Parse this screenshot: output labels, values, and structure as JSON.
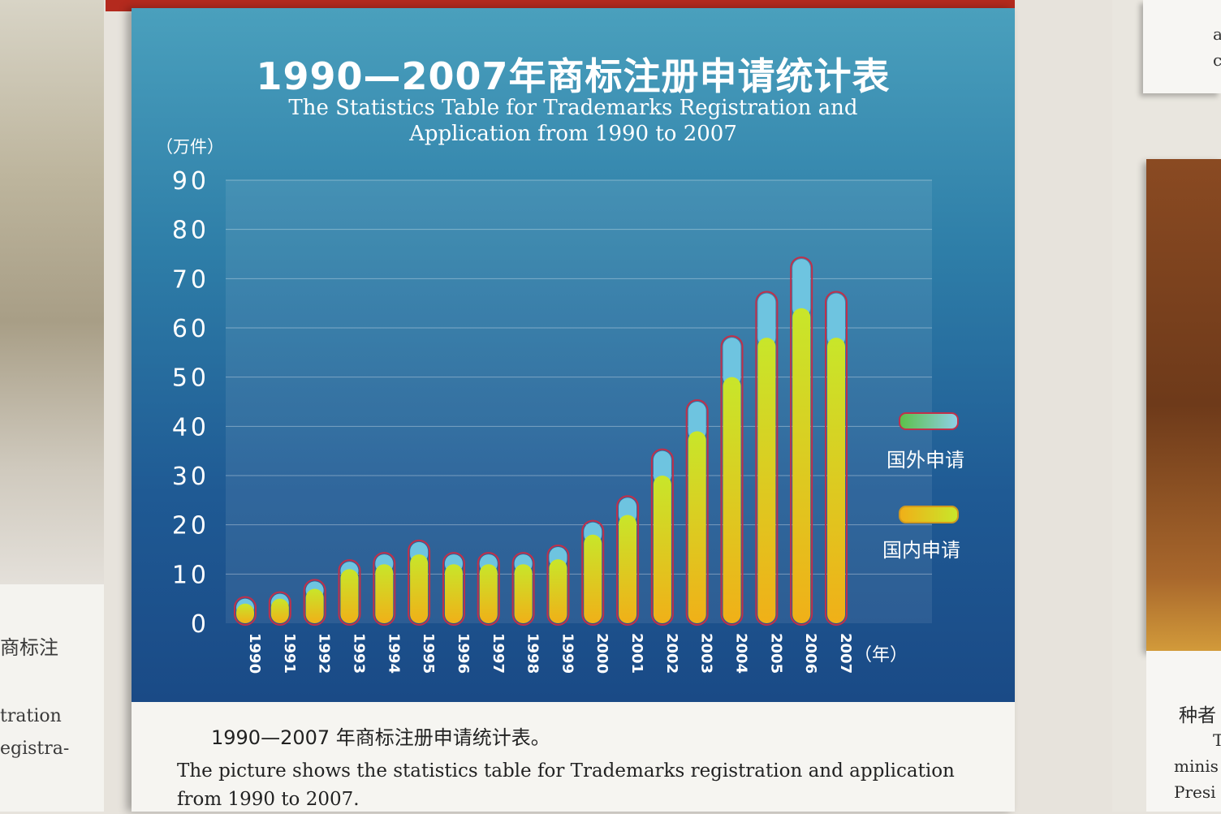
{
  "poster": {
    "title_cn": "1990—2007年商标注册申请统计表",
    "title_en_line1": "The Statistics Table for Trademarks Registration and",
    "title_en_line2": "Application from 1990 to 2007",
    "unit": "（万件）",
    "caption_cn": "1990—2007 年商标注册申请统计表。",
    "caption_en": "The picture shows the statistics table for Trademarks registration and application from 1990 to 2007."
  },
  "side": {
    "left_lines": [
      "商标注",
      "tration",
      "egistra-"
    ],
    "right_top": [
      "a",
      "c"
    ],
    "right_lines": [
      "种者",
      "T",
      "minis",
      "Presi"
    ]
  },
  "colors": {
    "foreign": "#6ec4e0",
    "domestic_top": "#c8e62a",
    "domestic_bottom": "#f0b018",
    "outline": "#c0304a"
  },
  "chart_data": {
    "type": "bar",
    "stacked": true,
    "categories": [
      "1990",
      "1991",
      "1992",
      "1993",
      "1994",
      "1995",
      "1996",
      "1997",
      "1998",
      "1999",
      "2000",
      "2001",
      "2002",
      "2003",
      "2004",
      "2005",
      "2006",
      "2007"
    ],
    "series": [
      {
        "name": "国内申请",
        "values": [
          4,
          5,
          7,
          11,
          12,
          14,
          12,
          12,
          12,
          13,
          18,
          22,
          30,
          39,
          50,
          58,
          64,
          58
        ]
      },
      {
        "name": "国外申请",
        "values": [
          1,
          1,
          1.5,
          1.5,
          2,
          2.5,
          2,
          2,
          2,
          2.5,
          2.5,
          3.5,
          5,
          6,
          8,
          9,
          10,
          9
        ]
      }
    ],
    "ylim": [
      0,
      90
    ],
    "yticks": [
      "0",
      "10",
      "20",
      "30",
      "40",
      "50",
      "60",
      "70",
      "80",
      "90"
    ],
    "ylabel": "（万件）",
    "xlabel": "（年）",
    "grid": true,
    "legend_position": "right"
  }
}
